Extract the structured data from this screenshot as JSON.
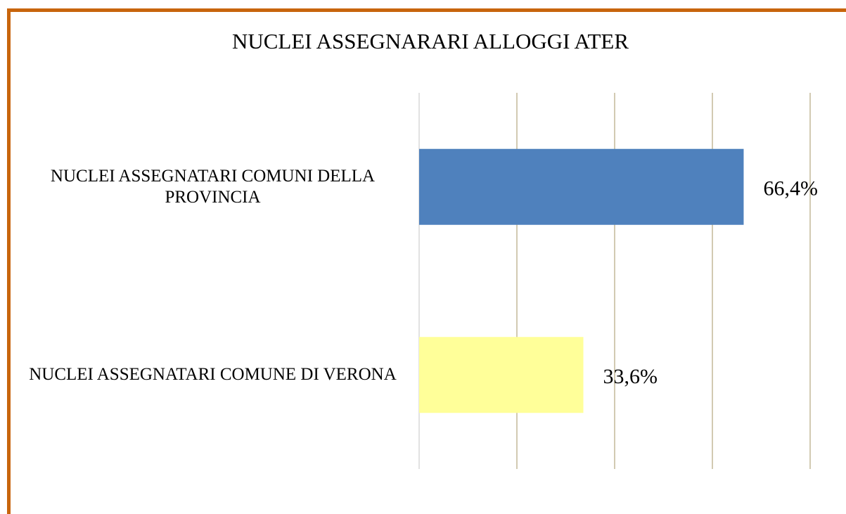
{
  "chart_data": {
    "type": "bar",
    "orientation": "horizontal",
    "title": "NUCLEI ASSEGNARARI ALLOGGI ATER",
    "categories": [
      "NUCLEI ASSEGNATARI COMUNI DELLA PROVINCIA",
      "NUCLEI ASSEGNATARI COMUNE DI VERONA"
    ],
    "values": [
      66.4,
      33.6
    ],
    "value_labels": [
      "66,4%",
      "33,6%"
    ],
    "colors": [
      "#4f81bd",
      "#ffff99"
    ],
    "xlim": [
      0,
      80
    ],
    "xticks": [
      0,
      20,
      40,
      60,
      80
    ],
    "grid": true
  }
}
